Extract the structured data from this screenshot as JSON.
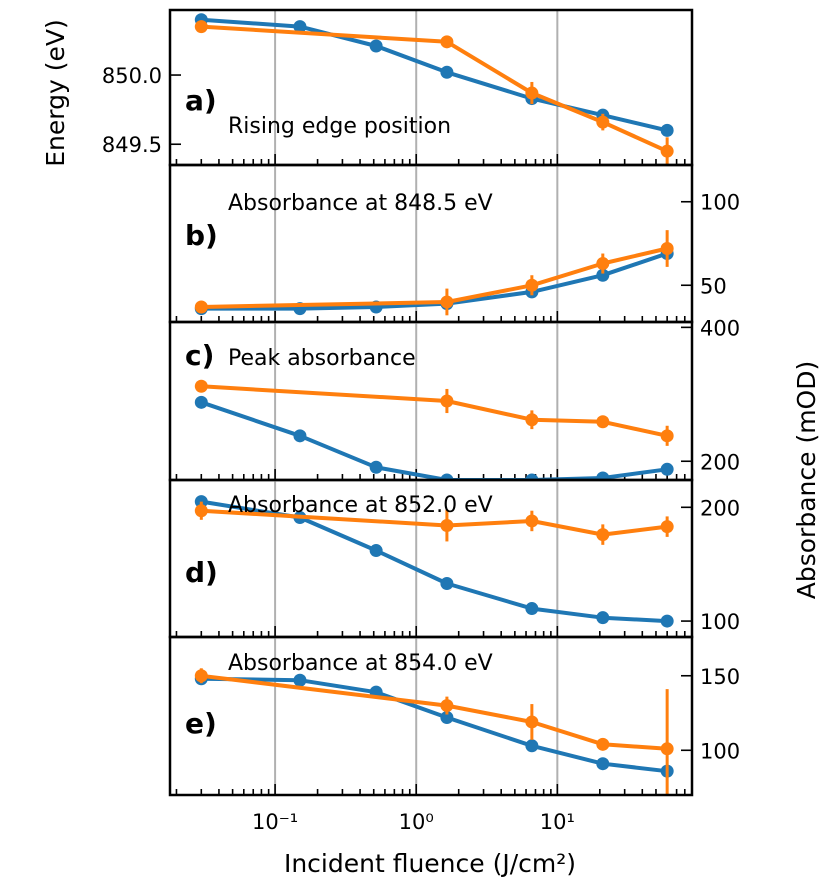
{
  "colors": {
    "series_a": "#1f77b4",
    "series_b": "#ff7f0e",
    "grid": "#b0b0b0"
  },
  "figure": {
    "xlabel": "Incident fluence (J/cm²)",
    "ylabel_left": "Energy (eV)",
    "ylabel_right": "Absorbance (mOD)"
  },
  "chart_data": [
    {
      "type": "line",
      "panel": "a)",
      "annotation": "Rising edge position",
      "xscale": "log",
      "xlim": [
        0.018,
        90
      ],
      "ylim": [
        849.35,
        850.47
      ],
      "yticks": [
        849.5,
        850.0
      ],
      "ytick_labels": [
        "849.5",
        "850.0"
      ],
      "yaxis": "left",
      "x_gridlines": [
        0.1,
        1,
        10
      ],
      "xticks_major": [
        0.1,
        1,
        10
      ],
      "xtick_labels": [
        "10⁻¹",
        "10⁰",
        "10¹"
      ],
      "series": [
        {
          "x": [
            0.03,
            0.15,
            0.52,
            1.65,
            6.6,
            21,
            60
          ],
          "y": [
            850.4,
            850.35,
            850.21,
            850.02,
            849.83,
            849.71,
            849.6
          ]
        },
        {
          "x": [
            0.03,
            1.65,
            6.6,
            21,
            60
          ],
          "y": [
            850.35,
            850.24,
            849.87,
            849.66,
            849.45
          ],
          "yerr": [
            0.03,
            0.04,
            0.08,
            0.06,
            0.1
          ]
        }
      ]
    },
    {
      "type": "line",
      "panel": "b)",
      "annotation": "Absorbance at 848.5 eV",
      "xscale": "log",
      "xlim": [
        0.018,
        90
      ],
      "ylim": [
        28,
        122
      ],
      "yticks": [
        50,
        100
      ],
      "ytick_labels": [
        "50",
        "100"
      ],
      "yaxis": "right",
      "x_gridlines": [
        0.1,
        1,
        10
      ],
      "series": [
        {
          "x": [
            0.03,
            0.15,
            0.52,
            1.65,
            6.6,
            21,
            60
          ],
          "y": [
            36,
            36,
            37,
            39,
            46,
            56,
            69
          ]
        },
        {
          "x": [
            0.03,
            1.65,
            6.6,
            21,
            60
          ],
          "y": [
            37,
            40,
            50,
            63,
            72
          ],
          "yerr": [
            3,
            8,
            6,
            6,
            11
          ]
        }
      ]
    },
    {
      "type": "line",
      "panel": "c)",
      "annotation": "Peak absorbance",
      "xscale": "log",
      "xlim": [
        0.018,
        90
      ],
      "ylim": [
        172,
        408
      ],
      "yticks": [
        200,
        400
      ],
      "ytick_labels": [
        "200",
        "400"
      ],
      "yaxis": "right",
      "x_gridlines": [
        0.1,
        1,
        10
      ],
      "series": [
        {
          "x": [
            0.03,
            0.15,
            0.52,
            1.65,
            6.6,
            21,
            60
          ],
          "y": [
            288,
            238,
            191,
            172,
            172,
            175,
            188
          ]
        },
        {
          "x": [
            0.03,
            1.65,
            6.6,
            21,
            60
          ],
          "y": [
            312,
            290,
            262,
            259,
            238
          ],
          "yerr": [
            8,
            18,
            14,
            8,
            15
          ]
        }
      ]
    },
    {
      "type": "line",
      "panel": "d)",
      "annotation": "Absorbance at 852.0 eV",
      "xscale": "log",
      "xlim": [
        0.018,
        90
      ],
      "ylim": [
        86,
        224
      ],
      "yticks": [
        100,
        200
      ],
      "ytick_labels": [
        "100",
        "200"
      ],
      "yaxis": "right",
      "x_gridlines": [
        0.1,
        1,
        10
      ],
      "series": [
        {
          "x": [
            0.03,
            0.15,
            0.52,
            1.65,
            6.6,
            21,
            60
          ],
          "y": [
            205,
            191,
            162,
            133,
            111,
            103,
            100
          ]
        },
        {
          "x": [
            0.03,
            1.65,
            6.6,
            21,
            60
          ],
          "y": [
            197,
            184,
            188,
            176,
            183
          ],
          "yerr": [
            8,
            14,
            9,
            9,
            9
          ]
        }
      ]
    },
    {
      "type": "line",
      "panel": "e)",
      "annotation": "Absorbance at 854.0 eV",
      "xscale": "log",
      "xlim": [
        0.018,
        90
      ],
      "ylim": [
        70,
        176
      ],
      "yticks": [
        100,
        150
      ],
      "ytick_labels": [
        "100",
        "150"
      ],
      "yaxis": "right",
      "x_gridlines": [
        0.1,
        1,
        10
      ],
      "xticks_major": [
        0.1,
        1,
        10
      ],
      "xtick_labels": [
        "10⁻¹",
        "10⁰",
        "10¹"
      ],
      "series": [
        {
          "x": [
            0.03,
            0.15,
            0.52,
            1.65,
            6.6,
            21,
            60
          ],
          "y": [
            148,
            147,
            139,
            122,
            103,
            91,
            86
          ]
        },
        {
          "x": [
            0.03,
            1.65,
            6.6,
            21,
            60
          ],
          "y": [
            150,
            130,
            119,
            104,
            101
          ],
          "yerr": [
            5,
            6,
            12,
            4,
            40
          ]
        }
      ]
    }
  ]
}
